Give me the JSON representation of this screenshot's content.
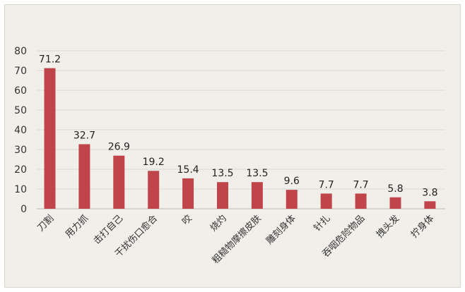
{
  "chart_data": {
    "type": "bar",
    "title": "",
    "xlabel": "",
    "ylabel": "",
    "ylim": [
      0,
      80
    ],
    "yticks": [
      0,
      10,
      20,
      30,
      40,
      50,
      60,
      70,
      80
    ],
    "grid": true,
    "legend": "none",
    "bar_color": "#c0454a",
    "categories": [
      "刀割",
      "用力抓",
      "击打自己",
      "干扰伤口愈合",
      "咬",
      "烧灼",
      "粗糙物摩擦皮肤",
      "雕刻身体",
      "针扎",
      "吞咽危险物品",
      "拽头发",
      "拧身体"
    ],
    "values": [
      71.2,
      32.7,
      26.9,
      19.2,
      15.4,
      13.5,
      13.5,
      9.6,
      7.7,
      7.7,
      5.8,
      3.8
    ],
    "data_labels": [
      "71.2",
      "32.7",
      "26.9",
      "19.2",
      "15.4",
      "13.5",
      "13.5",
      "9.6",
      "7.7",
      "7.7",
      "5.8",
      "3.8"
    ]
  }
}
